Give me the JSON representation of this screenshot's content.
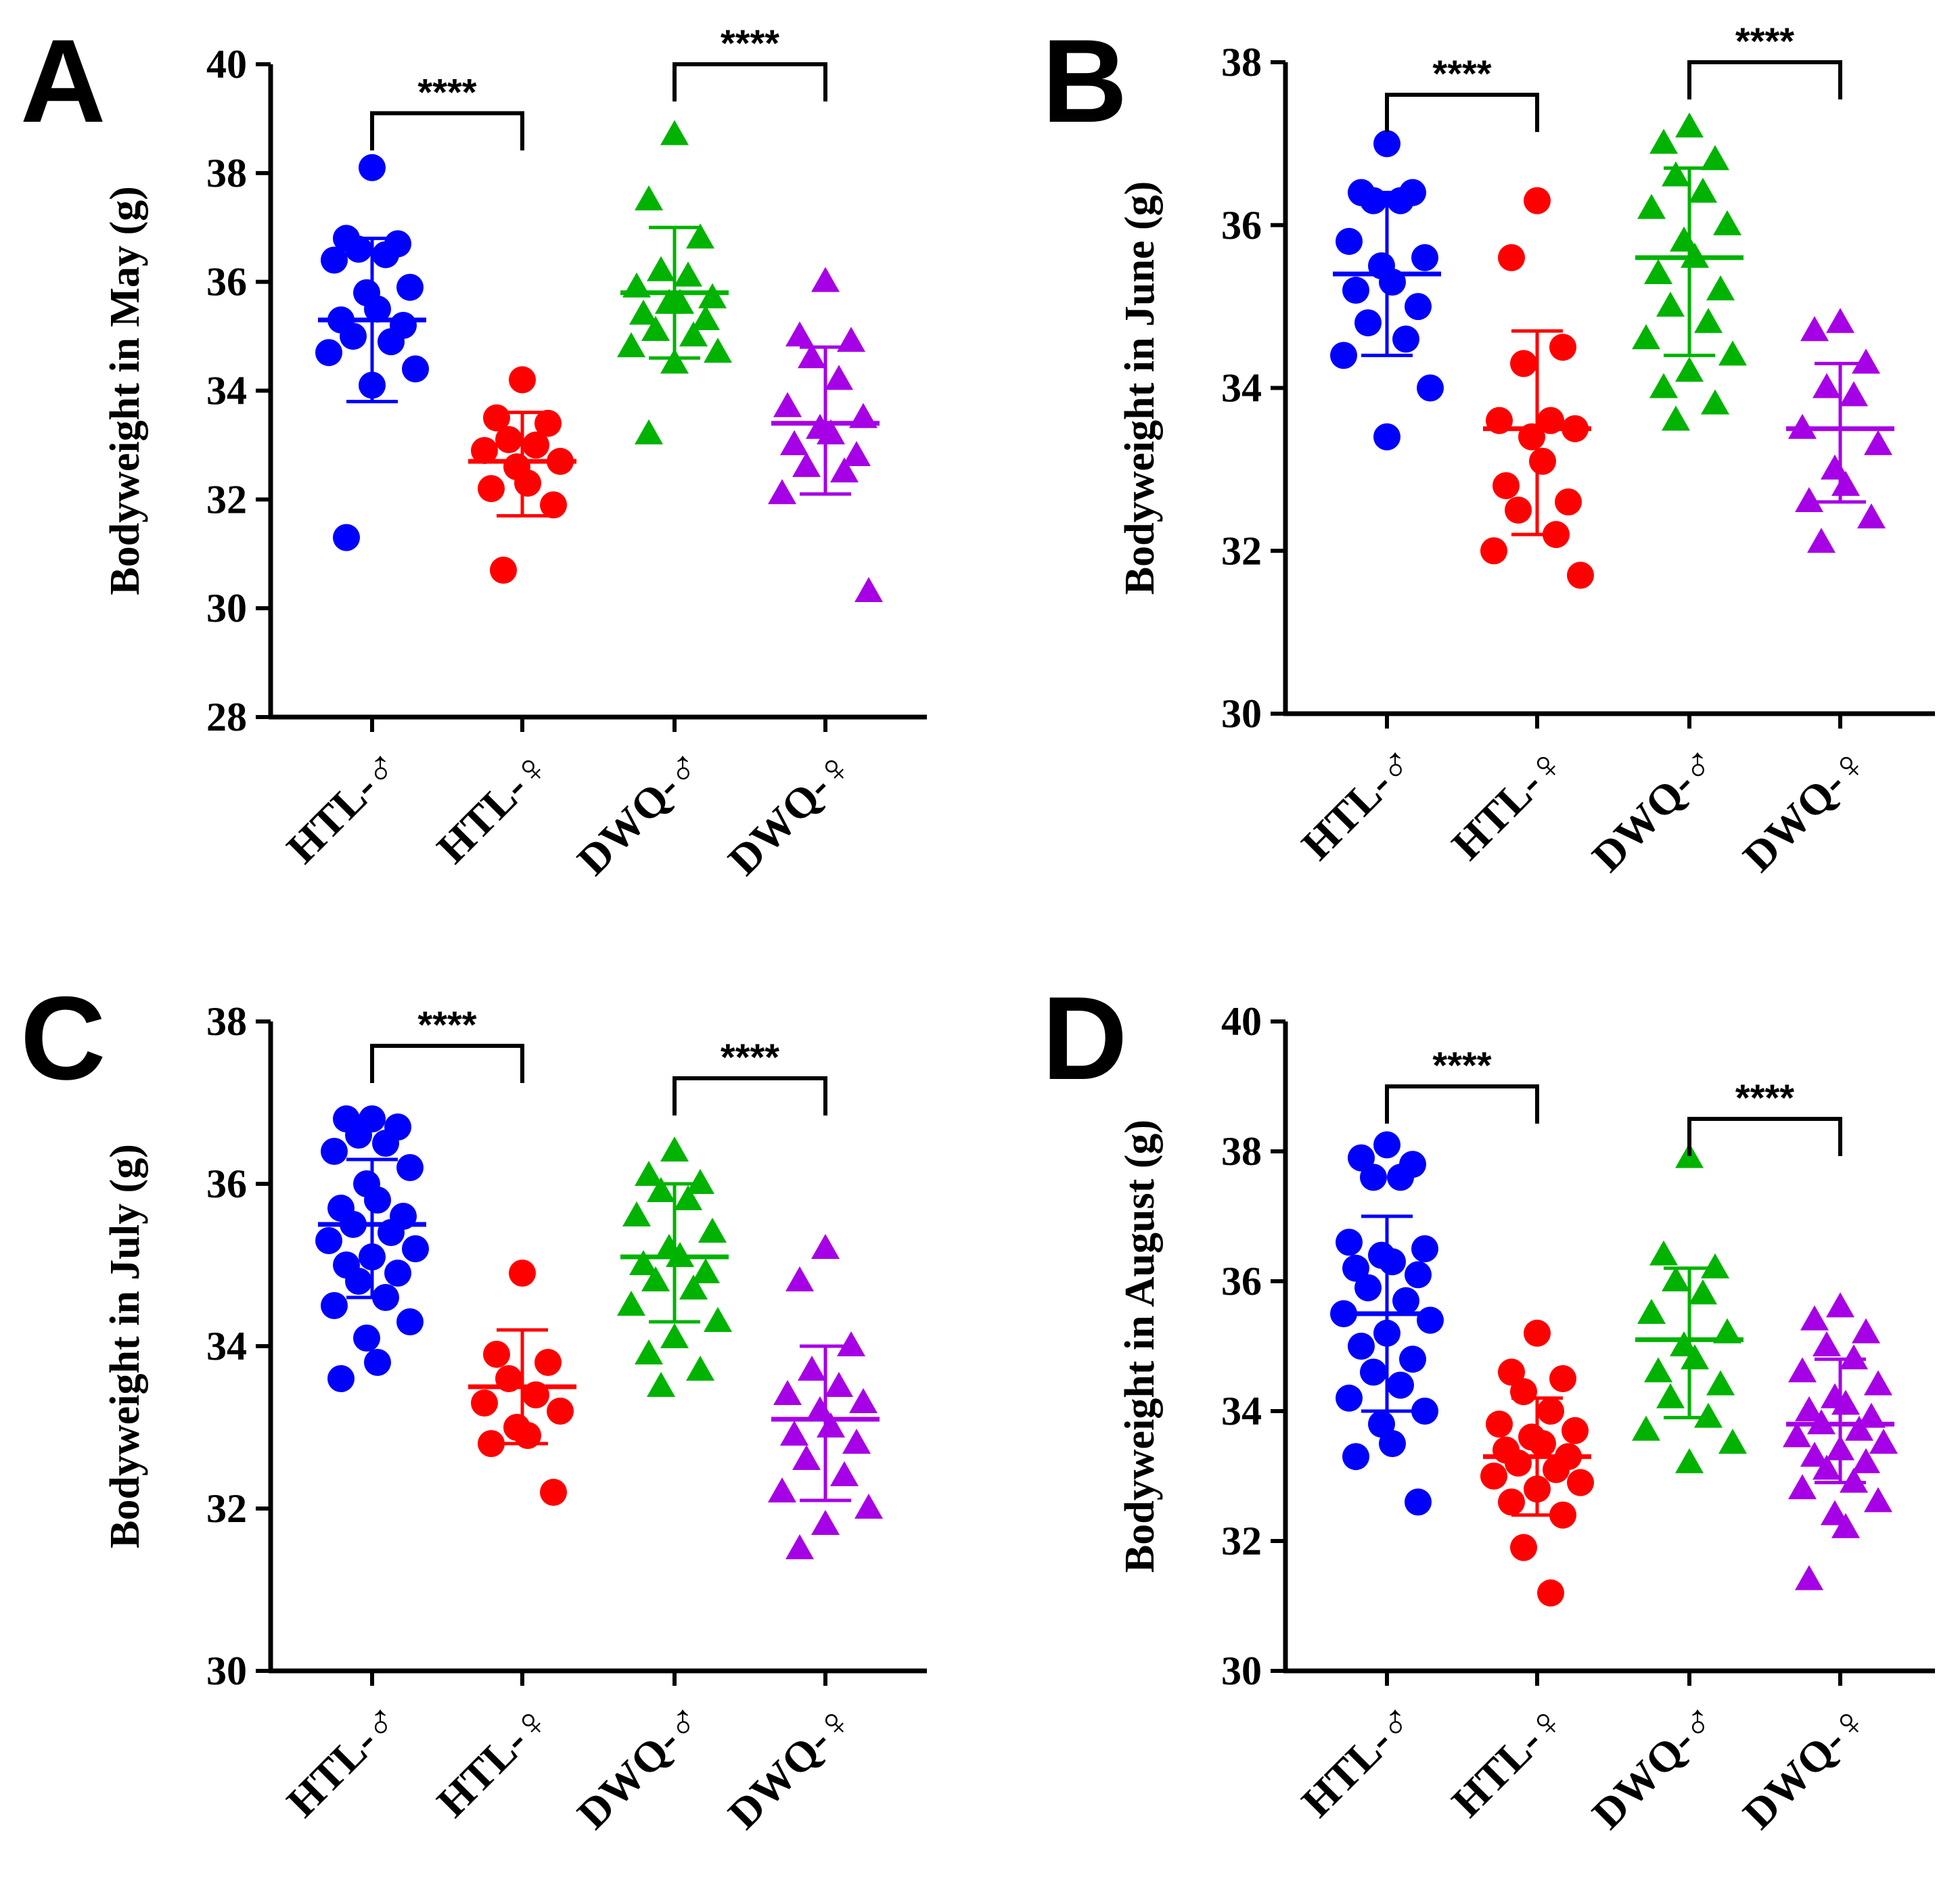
{
  "colors": {
    "HTL-male": "#0000ff",
    "HTL-female": "#ff0000",
    "DWQ-male": "#00b300",
    "DWQ-female": "#a600e6"
  },
  "chart_data": [
    {
      "type": "scatter",
      "panel": "A",
      "ylabel": "Bodyweight in May (g)",
      "ylim": [
        28,
        40
      ],
      "yticks": [
        28,
        30,
        32,
        34,
        36,
        38,
        40
      ],
      "categories": [
        "HTL-♂",
        "HTL-♀",
        "DWQ-♂",
        "DWQ-♀"
      ],
      "significance": [
        {
          "from": 0,
          "to": 1,
          "label": "****",
          "y": 39.1
        },
        {
          "from": 2,
          "to": 3,
          "label": "****",
          "y": 40.0
        }
      ],
      "series": [
        {
          "category": "HTL-♂",
          "marker": "circle",
          "mean": 35.3,
          "sd_low": 33.8,
          "sd_high": 36.8,
          "values": [
            38.1,
            36.8,
            36.7,
            36.6,
            36.5,
            36.4,
            35.9,
            35.8,
            35.5,
            35.3,
            35.2,
            35.0,
            34.9,
            34.7,
            34.4,
            34.1,
            31.3
          ]
        },
        {
          "category": "HTL-♀",
          "marker": "circle",
          "mean": 32.7,
          "sd_low": 31.7,
          "sd_high": 33.6,
          "values": [
            34.2,
            33.5,
            33.4,
            33.1,
            33.0,
            32.9,
            32.7,
            32.6,
            32.3,
            32.2,
            31.9,
            30.7
          ]
        },
        {
          "category": "DWQ-♂",
          "marker": "triangle",
          "mean": 35.8,
          "sd_low": 34.6,
          "sd_high": 37.0,
          "values": [
            38.7,
            37.5,
            36.8,
            36.2,
            36.1,
            35.9,
            35.7,
            35.6,
            35.6,
            35.4,
            35.3,
            35.1,
            35.0,
            34.8,
            34.7,
            34.5,
            33.2
          ]
        },
        {
          "category": "DWQ-♀",
          "marker": "triangle",
          "mean": 33.4,
          "sd_low": 32.1,
          "sd_high": 34.8,
          "values": [
            36.0,
            35.0,
            34.9,
            34.6,
            34.2,
            33.7,
            33.5,
            33.3,
            33.2,
            33.0,
            32.8,
            32.6,
            32.5,
            32.1,
            30.3
          ]
        }
      ]
    },
    {
      "type": "scatter",
      "panel": "B",
      "ylabel": "Bodyweight in June (g)",
      "ylim": [
        30,
        38
      ],
      "yticks": [
        30,
        32,
        34,
        36,
        38
      ],
      "categories": [
        "HTL-♂",
        "HTL-♀",
        "DWQ-♂",
        "DWQ-♀"
      ],
      "significance": [
        {
          "from": 0,
          "to": 1,
          "label": "****",
          "y": 37.6
        },
        {
          "from": 2,
          "to": 3,
          "label": "****",
          "y": 38.0
        }
      ],
      "series": [
        {
          "category": "HTL-♂",
          "marker": "circle",
          "mean": 35.4,
          "sd_low": 34.4,
          "sd_high": 36.4,
          "values": [
            37.0,
            36.4,
            36.4,
            36.3,
            36.3,
            35.8,
            35.6,
            35.5,
            35.3,
            35.2,
            35.0,
            34.8,
            34.6,
            34.4,
            34.0,
            33.4
          ]
        },
        {
          "category": "HTL-♀",
          "marker": "circle",
          "mean": 33.5,
          "sd_low": 32.2,
          "sd_high": 34.7,
          "values": [
            36.3,
            35.6,
            34.5,
            34.3,
            33.6,
            33.6,
            33.5,
            33.4,
            33.1,
            32.8,
            32.6,
            32.5,
            32.2,
            32.0,
            31.7
          ]
        },
        {
          "category": "DWQ-♂",
          "marker": "triangle",
          "mean": 35.6,
          "sd_low": 34.4,
          "sd_high": 36.7,
          "values": [
            37.2,
            37.0,
            36.8,
            36.6,
            36.4,
            36.2,
            36.0,
            35.8,
            35.6,
            35.4,
            35.2,
            35.0,
            34.8,
            34.6,
            34.4,
            34.2,
            34.0,
            33.8,
            33.6
          ]
        },
        {
          "category": "DWQ-♀",
          "marker": "triangle",
          "mean": 33.5,
          "sd_low": 32.6,
          "sd_high": 34.3,
          "values": [
            34.8,
            34.7,
            34.3,
            34.0,
            33.9,
            33.5,
            33.3,
            33.0,
            32.8,
            32.6,
            32.4,
            32.1
          ]
        }
      ]
    },
    {
      "type": "scatter",
      "panel": "C",
      "ylabel": "Bodyweight in July (g)",
      "ylim": [
        30,
        38
      ],
      "yticks": [
        30,
        32,
        34,
        36,
        38
      ],
      "categories": [
        "HTL-♂",
        "HTL-♀",
        "DWQ-♂",
        "DWQ-♀"
      ],
      "significance": [
        {
          "from": 0,
          "to": 1,
          "label": "****",
          "y": 37.7
        },
        {
          "from": 2,
          "to": 3,
          "label": "****",
          "y": 37.3
        }
      ],
      "series": [
        {
          "category": "HTL-♂",
          "marker": "circle",
          "mean": 35.5,
          "sd_low": 34.6,
          "sd_high": 36.3,
          "values": [
            36.8,
            36.8,
            36.7,
            36.6,
            36.5,
            36.4,
            36.2,
            36.0,
            35.8,
            35.7,
            35.6,
            35.5,
            35.4,
            35.3,
            35.2,
            35.1,
            35.0,
            34.9,
            34.8,
            34.6,
            34.5,
            34.3,
            34.1,
            33.8,
            33.6
          ]
        },
        {
          "category": "HTL-♀",
          "marker": "circle",
          "mean": 33.5,
          "sd_low": 32.8,
          "sd_high": 34.2,
          "values": [
            34.9,
            33.9,
            33.8,
            33.6,
            33.4,
            33.3,
            33.2,
            33.0,
            32.9,
            32.8,
            32.2
          ]
        },
        {
          "category": "DWQ-♂",
          "marker": "triangle",
          "mean": 35.1,
          "sd_low": 34.3,
          "sd_high": 36.0,
          "values": [
            36.4,
            36.1,
            36.0,
            35.9,
            35.8,
            35.6,
            35.4,
            35.2,
            35.1,
            35.0,
            34.9,
            34.8,
            34.7,
            34.5,
            34.3,
            34.1,
            33.9,
            33.7,
            33.5
          ]
        },
        {
          "category": "DWQ-♀",
          "marker": "triangle",
          "mean": 33.1,
          "sd_low": 32.1,
          "sd_high": 34.0,
          "values": [
            35.2,
            34.8,
            34.0,
            33.7,
            33.5,
            33.4,
            33.3,
            33.2,
            33.0,
            32.9,
            32.8,
            32.6,
            32.4,
            32.2,
            32.0,
            31.8,
            31.5
          ]
        }
      ]
    },
    {
      "type": "scatter",
      "panel": "D",
      "ylabel": "Bodyweight in August (g)",
      "ylim": [
        30,
        40
      ],
      "yticks": [
        30,
        32,
        34,
        36,
        38,
        40
      ],
      "categories": [
        "HTL-♂",
        "HTL-♀",
        "DWQ-♂",
        "DWQ-♀"
      ],
      "significance": [
        {
          "from": 0,
          "to": 1,
          "label": "****",
          "y": 39.0
        },
        {
          "from": 2,
          "to": 3,
          "label": "****",
          "y": 38.5
        }
      ],
      "series": [
        {
          "category": "HTL-♂",
          "marker": "circle",
          "mean": 35.5,
          "sd_low": 34.0,
          "sd_high": 37.0,
          "values": [
            38.1,
            37.9,
            37.8,
            37.6,
            37.6,
            36.6,
            36.5,
            36.4,
            36.3,
            36.2,
            36.1,
            35.9,
            35.7,
            35.5,
            35.4,
            35.2,
            35.0,
            34.8,
            34.6,
            34.4,
            34.2,
            34.0,
            33.8,
            33.5,
            33.3,
            32.6
          ]
        },
        {
          "category": "HTL-♀",
          "marker": "circle",
          "mean": 33.3,
          "sd_low": 32.4,
          "sd_high": 34.2,
          "values": [
            35.2,
            34.6,
            34.5,
            34.3,
            34.0,
            33.8,
            33.7,
            33.6,
            33.5,
            33.4,
            33.3,
            33.2,
            33.1,
            33.0,
            32.9,
            32.8,
            32.6,
            32.4,
            31.9,
            31.2
          ]
        },
        {
          "category": "DWQ-♂",
          "marker": "triangle",
          "mean": 35.1,
          "sd_low": 33.9,
          "sd_high": 36.2,
          "values": [
            37.9,
            36.4,
            36.2,
            36.0,
            35.8,
            35.5,
            35.2,
            35.0,
            34.8,
            34.6,
            34.4,
            34.2,
            33.9,
            33.7,
            33.5,
            33.2
          ]
        },
        {
          "category": "DWQ-♀",
          "marker": "triangle",
          "mean": 33.8,
          "sd_low": 32.9,
          "sd_high": 34.8,
          "values": [
            35.6,
            35.4,
            35.2,
            35.0,
            34.8,
            34.6,
            34.4,
            34.2,
            34.1,
            34.0,
            33.9,
            33.8,
            33.7,
            33.6,
            33.5,
            33.4,
            33.3,
            33.2,
            33.1,
            32.9,
            32.8,
            32.6,
            32.4,
            32.2,
            31.4
          ]
        }
      ]
    }
  ]
}
